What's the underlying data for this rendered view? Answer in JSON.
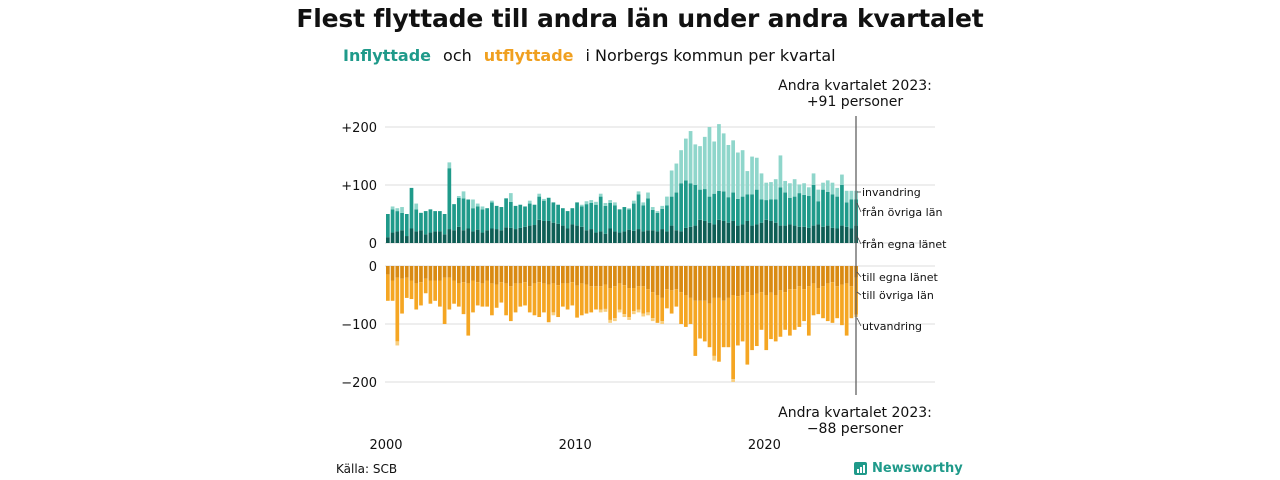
{
  "title": "Flest flyttade till andra län under andra kvartalet",
  "subtitle": {
    "part1": "Inflyttade",
    "part2": "och",
    "part3": "utflyttade",
    "part4": "i Norbergs  kommun  per  kvartal"
  },
  "source": "Källa: SCB",
  "brand": "Newsworthy",
  "colors": {
    "in_egna": "#0e5e55",
    "in_ovriga": "#1f9a8a",
    "in_invandring": "#8fd6cb",
    "out_egna": "#d98a12",
    "out_ovriga": "#f5a623",
    "out_utvandring": "#f8cf80",
    "grid": "#dddddd"
  },
  "chart_data": {
    "type": "bar",
    "stacked": true,
    "start_year": 2000,
    "interval": "quarter",
    "x_tick_labels": [
      "2000",
      "2010",
      "2020"
    ],
    "top_panel": {
      "yticks": [
        "+200",
        "+100",
        "0"
      ],
      "ylim": [
        0,
        220
      ],
      "series": [
        {
          "name": "från egna länet",
          "values": [
            10,
            18,
            20,
            22,
            12,
            25,
            20,
            22,
            15,
            18,
            20,
            20,
            15,
            24,
            22,
            28,
            22,
            25,
            20,
            23,
            18,
            22,
            25,
            24,
            22,
            27,
            26,
            24,
            26,
            28,
            30,
            31,
            40,
            38,
            38,
            35,
            33,
            30,
            25,
            32,
            30,
            28,
            22,
            24,
            18,
            20,
            16,
            25,
            20,
            18,
            20,
            23,
            21,
            24,
            20,
            22,
            22,
            20,
            24,
            20,
            30,
            22,
            20,
            26,
            28,
            30,
            40,
            38,
            35,
            32,
            40,
            38,
            35,
            38,
            30,
            32,
            38,
            30,
            32,
            35,
            40,
            38,
            35,
            30,
            30,
            32,
            30,
            28,
            28,
            26,
            30,
            32,
            28,
            30,
            26,
            25,
            30,
            28,
            25,
            30
          ]
        },
        {
          "name": "från övriga län",
          "values": [
            40,
            40,
            35,
            30,
            38,
            70,
            38,
            30,
            40,
            40,
            35,
            35,
            35,
            105,
            45,
            50,
            55,
            50,
            40,
            40,
            40,
            38,
            45,
            40,
            40,
            50,
            45,
            40,
            40,
            35,
            38,
            35,
            40,
            35,
            40,
            35,
            33,
            30,
            30,
            28,
            40,
            35,
            45,
            45,
            48,
            60,
            48,
            44,
            45,
            40,
            42,
            35,
            47,
            60,
            45,
            55,
            35,
            32,
            35,
            45,
            50,
            65,
            83,
            82,
            75,
            70,
            52,
            55,
            45,
            53,
            50,
            51,
            44,
            49,
            46,
            48,
            46,
            54,
            60,
            40,
            34,
            37,
            40,
            66,
            57,
            46,
            50,
            58,
            55,
            55,
            70,
            40,
            64,
            58,
            58,
            55,
            70,
            42,
            50,
            45
          ]
        },
        {
          "name": "invandring",
          "values": [
            0,
            5,
            5,
            10,
            0,
            0,
            10,
            0,
            0,
            0,
            0,
            0,
            0,
            10,
            0,
            3,
            12,
            0,
            15,
            5,
            5,
            0,
            3,
            0,
            0,
            0,
            15,
            0,
            0,
            0,
            5,
            0,
            5,
            3,
            0,
            0,
            0,
            0,
            0,
            0,
            0,
            3,
            5,
            5,
            5,
            5,
            5,
            5,
            5,
            0,
            0,
            2,
            5,
            5,
            5,
            10,
            5,
            3,
            5,
            15,
            45,
            50,
            57,
            72,
            90,
            70,
            75,
            90,
            120,
            90,
            115,
            100,
            90,
            90,
            80,
            80,
            40,
            65,
            55,
            45,
            30,
            30,
            35,
            55,
            20,
            25,
            30,
            15,
            20,
            15,
            20,
            20,
            12,
            20,
            20,
            15,
            18,
            20,
            15,
            15
          ]
        }
      ]
    },
    "bottom_panel": {
      "yticks": [
        "0",
        "−100",
        "−200"
      ],
      "ylim": [
        -220,
        0
      ],
      "series": [
        {
          "name": "till egna länet",
          "values": [
            15,
            25,
            20,
            22,
            20,
            25,
            30,
            28,
            22,
            25,
            25,
            25,
            20,
            20,
            25,
            30,
            28,
            30,
            25,
            28,
            30,
            25,
            30,
            32,
            28,
            30,
            35,
            30,
            30,
            28,
            35,
            30,
            28,
            30,
            32,
            30,
            33,
            30,
            30,
            28,
            34,
            30,
            32,
            35,
            35,
            35,
            32,
            38,
            35,
            30,
            33,
            38,
            38,
            35,
            35,
            40,
            45,
            50,
            55,
            40,
            42,
            40,
            45,
            50,
            55,
            60,
            60,
            60,
            65,
            55,
            55,
            60,
            55,
            50,
            52,
            50,
            45,
            50,
            48,
            45,
            50,
            46,
            50,
            42,
            45,
            40,
            40,
            35,
            40,
            35,
            30,
            38,
            35,
            30,
            28,
            35,
            32,
            30,
            35,
            20
          ]
        },
        {
          "name": "till övriga län",
          "values": [
            45,
            35,
            110,
            60,
            35,
            32,
            45,
            40,
            25,
            40,
            35,
            45,
            80,
            55,
            40,
            40,
            55,
            90,
            55,
            40,
            40,
            45,
            55,
            40,
            35,
            55,
            60,
            50,
            40,
            40,
            45,
            55,
            60,
            50,
            65,
            50,
            55,
            40,
            45,
            40,
            55,
            55,
            50,
            45,
            40,
            40,
            42,
            55,
            55,
            45,
            50,
            50,
            40,
            40,
            47,
            40,
            45,
            48,
            40,
            33,
            40,
            30,
            55,
            55,
            45,
            95,
            65,
            70,
            75,
            100,
            110,
            80,
            85,
            145,
            85,
            80,
            125,
            95,
            90,
            65,
            95,
            80,
            80,
            80,
            65,
            80,
            70,
            70,
            55,
            85,
            55,
            45,
            55,
            65,
            70,
            55,
            70,
            90,
            55,
            64
          ]
        },
        {
          "name": "utvandring",
          "values": [
            0,
            0,
            7,
            0,
            0,
            0,
            0,
            0,
            0,
            0,
            0,
            0,
            0,
            0,
            0,
            0,
            0,
            0,
            0,
            0,
            0,
            0,
            0,
            0,
            0,
            0,
            0,
            0,
            0,
            0,
            0,
            0,
            0,
            0,
            0,
            5,
            0,
            0,
            0,
            0,
            0,
            0,
            0,
            0,
            0,
            5,
            5,
            5,
            5,
            5,
            5,
            5,
            5,
            5,
            5,
            5,
            5,
            0,
            5,
            0,
            0,
            0,
            0,
            0,
            0,
            0,
            0,
            0,
            0,
            8,
            0,
            0,
            0,
            5,
            0,
            0,
            0,
            0,
            0,
            0,
            0,
            0,
            0,
            0,
            0,
            0,
            0,
            0,
            0,
            0,
            0,
            0,
            0,
            0,
            0,
            0,
            0,
            0,
            0,
            4
          ]
        }
      ]
    },
    "annotations": {
      "top_line1": "Andra kvartalet 2023:",
      "top_line2": "+91 personer",
      "bottom_line1": "Andra kvartalet 2023:",
      "bottom_line2": "−88 personer"
    },
    "side_labels": {
      "top": [
        "invandring",
        "från övriga län",
        "från egna länet"
      ],
      "bottom": [
        "till egna länet",
        "till övriga län",
        "utvandring"
      ]
    }
  }
}
